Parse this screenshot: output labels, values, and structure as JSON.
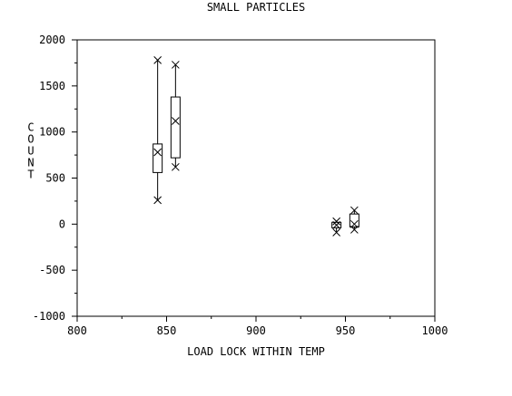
{
  "chart_data": {
    "type": "boxplot",
    "title": "SMALL PARTICLES",
    "xlabel": "LOAD LOCK WITHIN TEMP",
    "ylabel": "COUNT",
    "xlim": [
      800,
      1000
    ],
    "ylim": [
      -1000,
      2000
    ],
    "x_ticks": [
      800,
      850,
      900,
      950,
      1000
    ],
    "y_ticks": [
      -1000,
      -500,
      0,
      500,
      1000,
      1500,
      2000
    ],
    "grid": false,
    "groups": [
      {
        "x": 845,
        "min": 260,
        "q1": 560,
        "median": 780,
        "q3": 870,
        "max": 1780
      },
      {
        "x": 855,
        "min": 620,
        "q1": 720,
        "median": 1120,
        "q3": 1380,
        "max": 1730
      },
      {
        "x": 945,
        "min": -90,
        "q1": -40,
        "median": -10,
        "q3": 20,
        "max": 30
      },
      {
        "x": 955,
        "min": -60,
        "q1": -30,
        "median": 0,
        "q3": 110,
        "max": 150
      }
    ]
  }
}
